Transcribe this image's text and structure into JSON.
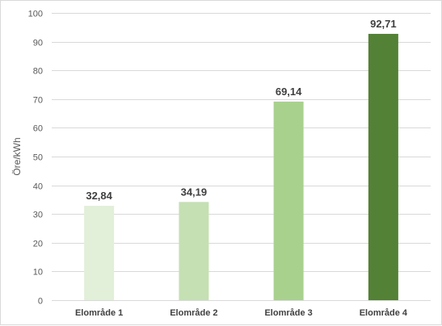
{
  "chart_data": {
    "type": "bar",
    "categories": [
      "Elområde 1",
      "Elområde 2",
      "Elområde 3",
      "Elområde 4"
    ],
    "values": [
      32.84,
      34.19,
      69.14,
      92.71
    ],
    "data_labels": [
      "32,84",
      "34,19",
      "69,14",
      "92,71"
    ],
    "bar_colors": [
      "#e2efd9",
      "#c5e0b3",
      "#a9d18e",
      "#538135"
    ],
    "ylabel": "Öre/kWh",
    "xlabel": "",
    "ylim": [
      0,
      100
    ],
    "yticks": [
      0,
      10,
      20,
      30,
      40,
      50,
      60,
      70,
      80,
      90,
      100
    ],
    "grid": true,
    "gridline_color": "#d9d9d9",
    "legend": "none"
  }
}
